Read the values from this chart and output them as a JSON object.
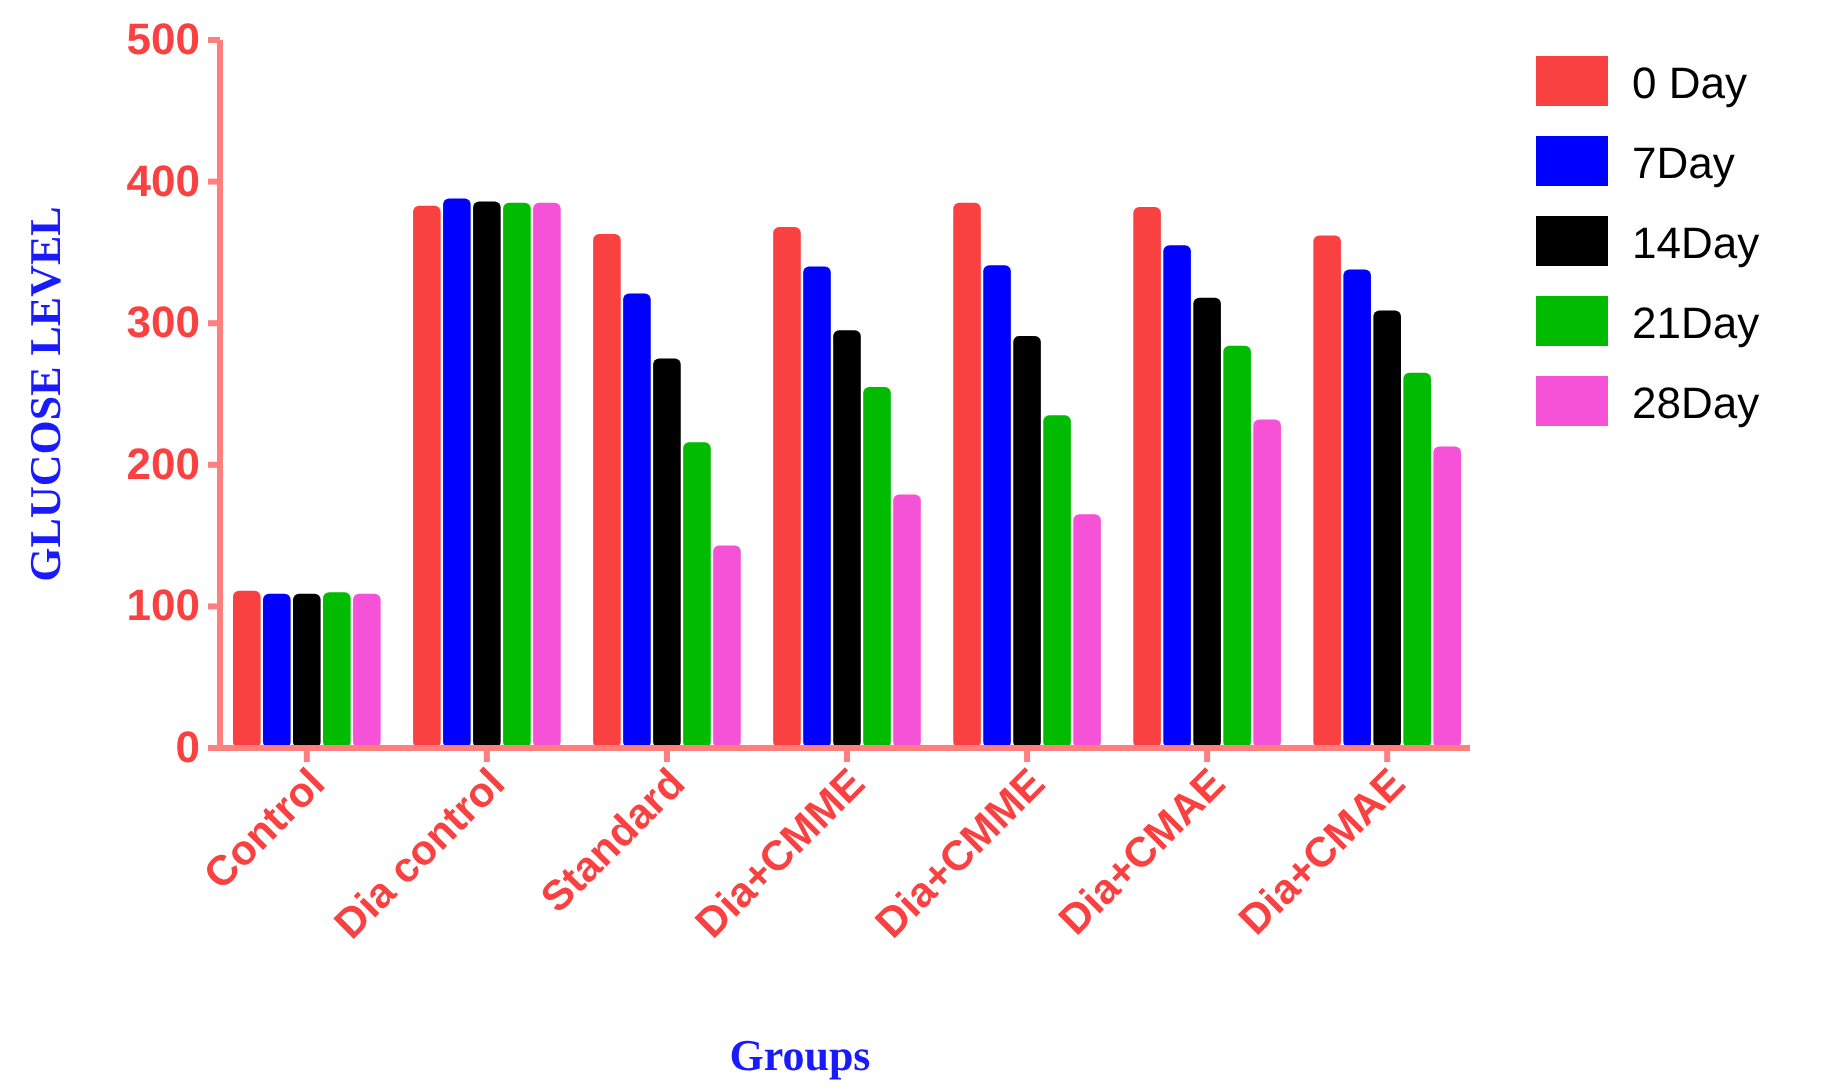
{
  "chart_data": {
    "type": "bar",
    "xlabel": "Groups",
    "ylabel": "GLUCOSE LEVEL",
    "categories": [
      "Control",
      "Dia control",
      "Standard",
      "Dia+CMME",
      "Dia+CMME",
      "Dia+CMAE",
      "Dia+CMAE"
    ],
    "series": [
      {
        "name": "0 Day",
        "color": "#f94141",
        "values": [
          111,
          383,
          363,
          368,
          385,
          382,
          362
        ]
      },
      {
        "name": "7Day",
        "color": "#0000ff",
        "values": [
          109,
          388,
          321,
          340,
          341,
          355,
          338
        ]
      },
      {
        "name": "14Day",
        "color": "#000000",
        "values": [
          109,
          386,
          275,
          295,
          291,
          318,
          309
        ]
      },
      {
        "name": "21Day",
        "color": "#00bb00",
        "values": [
          110,
          385,
          216,
          255,
          235,
          284,
          265
        ]
      },
      {
        "name": "28Day",
        "color": "#f552d8",
        "values": [
          109,
          385,
          143,
          179,
          165,
          232,
          213
        ]
      }
    ],
    "ylim": [
      0,
      500
    ],
    "yticks": [
      0,
      100,
      200,
      300,
      400,
      500
    ],
    "grid": false,
    "legend": "right"
  }
}
